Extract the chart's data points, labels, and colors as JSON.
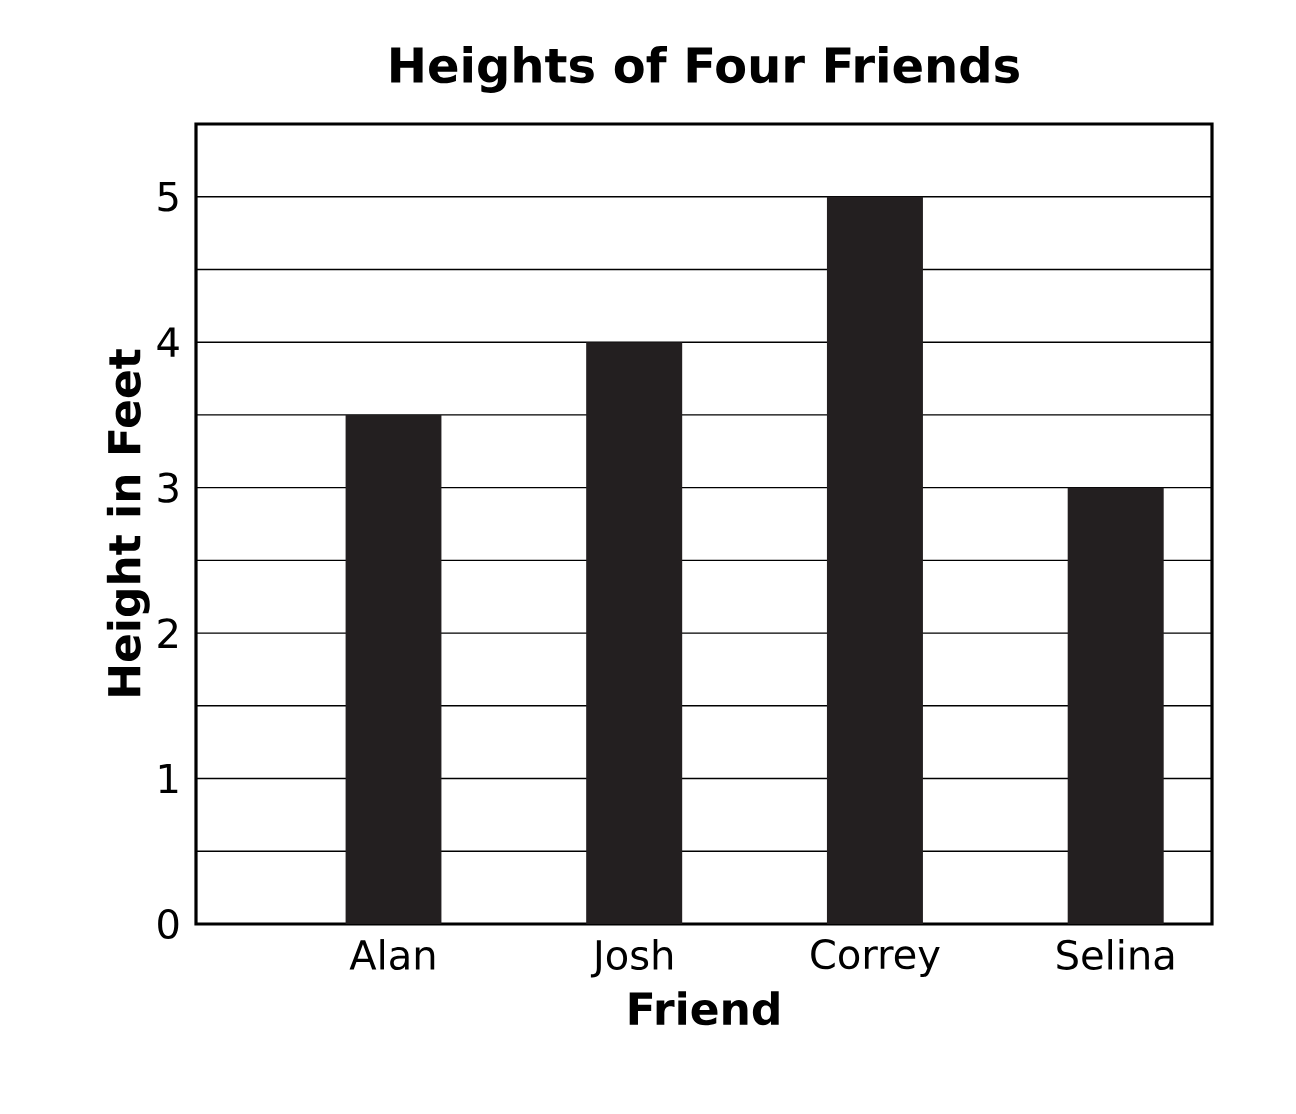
{
  "chart_data": {
    "type": "bar",
    "title": "Heights of Four Friends",
    "xlabel": "Friend",
    "ylabel": "Height in Feet",
    "categories": [
      "Alan",
      "Josh",
      "Correy",
      "Selina"
    ],
    "values": [
      3.5,
      4,
      5,
      3
    ],
    "color": "#231f20",
    "ylim": [
      0,
      5.5
    ],
    "yticks": [
      0,
      {
        "value": 0.5,
        "label": null
      },
      1,
      {
        "value": 1.5,
        "label": null
      },
      2,
      {
        "value": 2.5,
        "label": null
      },
      3,
      {
        "value": 3.5,
        "label": null
      },
      4,
      {
        "value": 4.5,
        "label": null
      },
      5
    ],
    "grid": "y"
  }
}
